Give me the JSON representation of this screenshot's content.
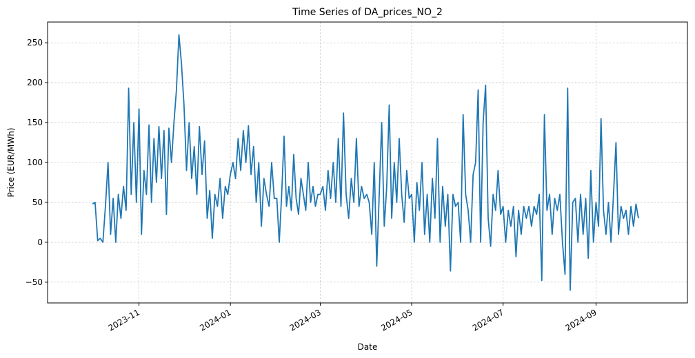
{
  "chart_data": {
    "type": "line",
    "title": "Time Series of DA_prices_NO_2",
    "x_label": "Date",
    "y_label": "Price (EUR/MWh)",
    "color": "#1f77b4",
    "grid": true,
    "x": [
      "2023-10",
      "2023-11",
      "2023-12",
      "2024-01",
      "2024-02",
      "2024-03",
      "2024-04",
      "2024-05",
      "2024-06",
      "2024-07",
      "2024-08",
      "2024-09"
    ],
    "values": [
      [
        48,
        50,
        2,
        5,
        0,
        45,
        100,
        10,
        55,
        0,
        60,
        30,
        70,
        40,
        193,
        60,
        150,
        50
      ],
      [
        167,
        10,
        90,
        60,
        147,
        50,
        130,
        75,
        145,
        80,
        140,
        35,
        143,
        100,
        150,
        191,
        260,
        225
      ],
      [
        173,
        90,
        150,
        80,
        120,
        60,
        145,
        85,
        127,
        30,
        65,
        5,
        60,
        45,
        80,
        30,
        70,
        60
      ],
      [
        85,
        100,
        80,
        130,
        90,
        140,
        100,
        146,
        85,
        120,
        50,
        100,
        20,
        80,
        60,
        45,
        100,
        55
      ],
      [
        55,
        0,
        60,
        133,
        45,
        70,
        40,
        110,
        55,
        35,
        80,
        60,
        40,
        100,
        50,
        70,
        45,
        60
      ],
      [
        60,
        70,
        40,
        90,
        55,
        100,
        50,
        130,
        45,
        162,
        60,
        30,
        80,
        50,
        130,
        45,
        70,
        55
      ],
      [
        60,
        50,
        10,
        100,
        -30,
        60,
        150,
        20,
        70,
        172,
        30,
        100,
        50,
        130,
        60,
        25,
        90,
        55
      ],
      [
        60,
        0,
        75,
        40,
        100,
        10,
        60,
        0,
        80,
        30,
        130,
        0,
        70,
        20,
        60,
        -36,
        60,
        45
      ],
      [
        50,
        0,
        160,
        60,
        40,
        0,
        85,
        100,
        191,
        0,
        150,
        197,
        30,
        -5,
        60,
        40,
        90,
        35
      ],
      [
        45,
        0,
        40,
        20,
        45,
        -18,
        40,
        10,
        45,
        30,
        45,
        20,
        45,
        35,
        60,
        -48,
        160,
        40
      ],
      [
        60,
        10,
        55,
        40,
        60,
        0,
        -40,
        193,
        -60,
        50,
        55,
        0,
        60,
        10,
        55,
        -20,
        90,
        0
      ],
      [
        50,
        20,
        155,
        40,
        10,
        50,
        0,
        60,
        125,
        10,
        45,
        30,
        40,
        10,
        45,
        20,
        48,
        30
      ]
    ],
    "xlim": [
      "2023-09",
      "2024-11"
    ],
    "xticks": [
      "2023-11",
      "2024-01",
      "2024-03",
      "2024-05",
      "2024-07",
      "2024-09"
    ],
    "ylim": [
      -76,
      276
    ],
    "yticks": [
      {
        "value": -50,
        "label": "−50"
      },
      0,
      50,
      100,
      150,
      200,
      250
    ]
  }
}
